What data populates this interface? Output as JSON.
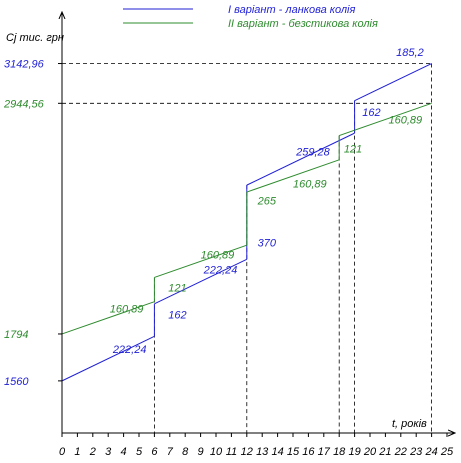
{
  "chart_data": {
    "type": "line",
    "ylabel": "Cj тис. грн",
    "xlabel": "t, років",
    "colors": {
      "variant1": "#1f1fd6",
      "variant2": "#2e8b2e",
      "axis": "#000000",
      "text": "#000000"
    },
    "legend": {
      "placement": "top",
      "entries": [
        {
          "name": "I варіант -  ланкова колія",
          "color": "#1f1fd6"
        },
        {
          "name": "II варіант -  безстикова колія",
          "color": "#2e8b2e"
        }
      ]
    },
    "x_ticks": [
      "0",
      "1",
      "2",
      "3",
      "4",
      "5",
      "6",
      "7",
      "8",
      "9",
      "10",
      "11",
      "12",
      "13",
      "14",
      "15",
      "16",
      "17",
      "18",
      "19",
      "20",
      "21",
      "22",
      "23",
      "24",
      "25"
    ],
    "xlim": [
      0,
      25
    ],
    "ylim": [
      1300,
      3400
    ],
    "y_tick_labels": [
      {
        "value": 3142.96,
        "label": "3142,96",
        "color": "#1f1fd6"
      },
      {
        "value": 2944.56,
        "label": "2944,56",
        "color": "#2e8b2e"
      },
      {
        "value": 1794,
        "label": "1794",
        "color": "#2e8b2e"
      },
      {
        "value": 1560,
        "label": "1560",
        "color": "#1f1fd6"
      }
    ],
    "series": [
      {
        "name": "I варіант -  ланкова колія",
        "color": "#1f1fd6",
        "segments": [
          {
            "x": [
              0,
              6
            ],
            "y": [
              1560,
              1782.24
            ]
          },
          {
            "x": [
              6,
              12
            ],
            "y": [
              1944.24,
              2166.48
            ]
          },
          {
            "x": [
              12,
              19
            ],
            "y": [
              2536.48,
              2795.76
            ]
          },
          {
            "x": [
              19,
              24
            ],
            "y": [
              2957.76,
              3142.96
            ]
          }
        ]
      },
      {
        "name": "II варіант -  безстикова колія",
        "color": "#2e8b2e",
        "segments": [
          {
            "x": [
              0,
              6
            ],
            "y": [
              1794,
              1954.89
            ]
          },
          {
            "x": [
              6,
              12
            ],
            "y": [
              2075.89,
              2236.78
            ]
          },
          {
            "x": [
              12,
              18
            ],
            "y": [
              2501.78,
              2662.67
            ]
          },
          {
            "x": [
              18,
              24
            ],
            "y": [
              2783.67,
              2944.56
            ]
          }
        ]
      }
    ],
    "annotations": [
      {
        "text": "222,24",
        "x": 3.3,
        "y": 1700,
        "color": "#1f1fd6"
      },
      {
        "text": "162",
        "x": 6.9,
        "y": 1870,
        "color": "#1f1fd6"
      },
      {
        "text": "222,24",
        "x": 9.2,
        "y": 2095,
        "color": "#1f1fd6"
      },
      {
        "text": "370",
        "x": 12.7,
        "y": 2230,
        "color": "#1f1fd6"
      },
      {
        "text": "259,28",
        "x": 15.2,
        "y": 2685,
        "color": "#1f1fd6"
      },
      {
        "text": "162",
        "x": 19.5,
        "y": 2880,
        "color": "#1f1fd6"
      },
      {
        "text": "185,2",
        "x": 21.7,
        "y": 3180,
        "color": "#1f1fd6"
      },
      {
        "text": "160,89",
        "x": 3.1,
        "y": 1900,
        "color": "#2e8b2e"
      },
      {
        "text": "121",
        "x": 6.9,
        "y": 2005,
        "color": "#2e8b2e"
      },
      {
        "text": "160,89",
        "x": 9.0,
        "y": 2170,
        "color": "#2e8b2e"
      },
      {
        "text": "265",
        "x": 12.7,
        "y": 2440,
        "color": "#2e8b2e"
      },
      {
        "text": "160,89",
        "x": 15.0,
        "y": 2525,
        "color": "#2e8b2e"
      },
      {
        "text": "121",
        "x": 18.3,
        "y": 2700,
        "color": "#2e8b2e"
      },
      {
        "text": "160,89",
        "x": 21.2,
        "y": 2845,
        "color": "#2e8b2e"
      }
    ],
    "guides": {
      "vertical_x": [
        6,
        12,
        18,
        19,
        24
      ],
      "horizontal_y": [
        3142.96,
        2944.56
      ]
    },
    "grid": false
  }
}
